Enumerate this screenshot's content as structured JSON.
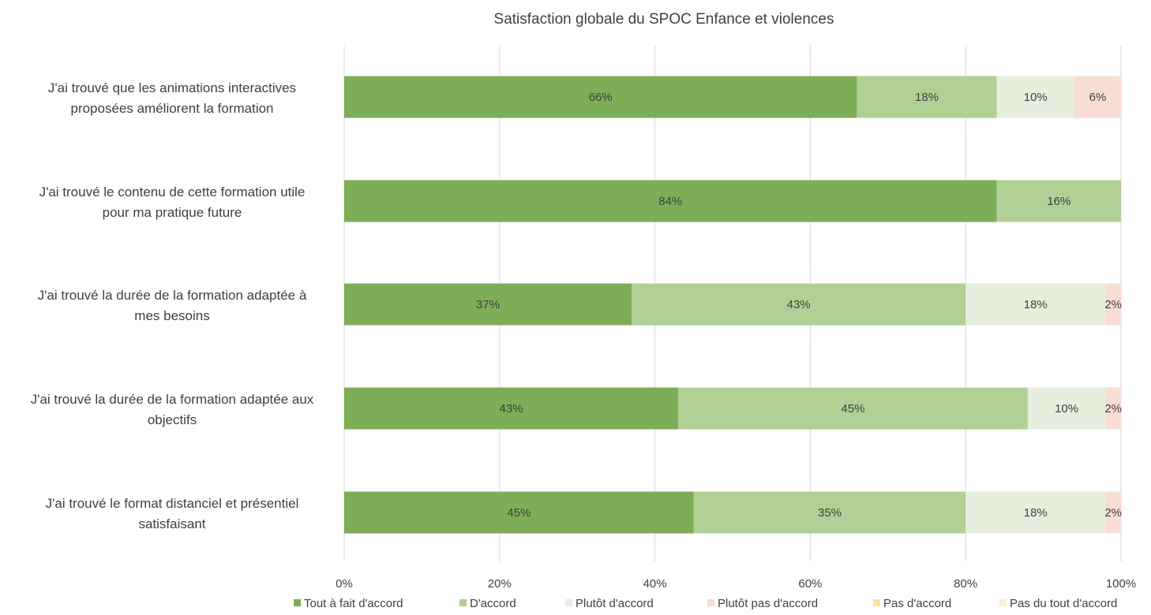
{
  "chart_data": {
    "type": "bar",
    "orientation": "horizontal",
    "stacked": true,
    "title": "Satisfaction globale du SPOC Enfance et violences",
    "xlabel": "",
    "ylabel": "",
    "xlim": [
      0,
      100
    ],
    "x_ticks": [
      "0%",
      "20%",
      "40%",
      "60%",
      "80%",
      "100%"
    ],
    "grid": "vertical",
    "legend_position": "bottom",
    "categories": [
      [
        "J'ai trouvé que les animations interactives",
        "proposées améliorent la formation"
      ],
      [
        "J'ai trouvé le contenu de cette formation utile",
        "pour ma pratique future"
      ],
      [
        "J'ai trouvé la durée de la formation adaptée à",
        "mes besoins"
      ],
      [
        "J'ai trouvé la durée de la formation adaptée aux",
        "objectifs"
      ],
      [
        "J'ai trouvé le format distanciel et présentiel",
        "satisfaisant"
      ]
    ],
    "series": [
      {
        "name": "Tout à fait d'accord",
        "color": "#7ead57",
        "values": [
          66,
          84,
          37,
          43,
          45
        ]
      },
      {
        "name": "D'accord",
        "color": "#b1d095",
        "values": [
          18,
          16,
          43,
          45,
          35
        ]
      },
      {
        "name": "Plutôt d'accord",
        "color": "#e6efdd",
        "values": [
          10,
          0,
          18,
          10,
          18
        ]
      },
      {
        "name": "Plutôt pas d'accord",
        "color": "#f7ddd2",
        "values": [
          6,
          0,
          2,
          2,
          2
        ]
      },
      {
        "name": "Pas d'accord",
        "color": "#fbe29f",
        "values": [
          0,
          0,
          0,
          0,
          0
        ]
      },
      {
        "name": "Pas du tout d'accord",
        "color": "#fdf0cf",
        "values": [
          0,
          0,
          0,
          0,
          0
        ]
      }
    ]
  }
}
